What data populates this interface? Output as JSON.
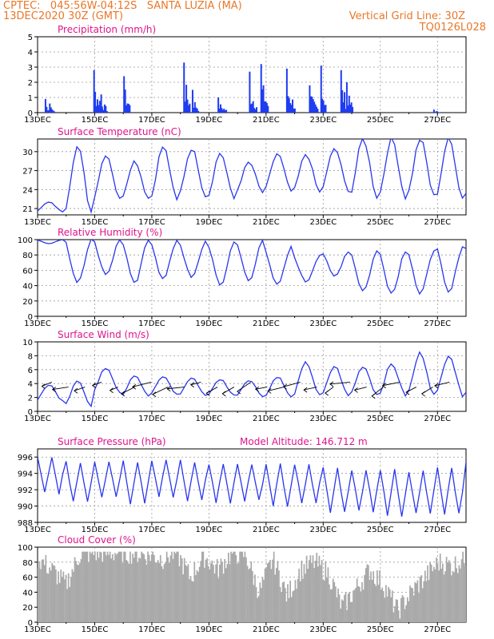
{
  "header": {
    "left_line1": "CPTEC:   045:56W-04:12S   SANTA LUZIA (MA)",
    "left_line2": "13DEC2020 30Z (GMT)",
    "right_line1": "Vertical Grid Line: 30Z",
    "right_line2": "TQ0126L028"
  },
  "colors": {
    "header": "#e8782a",
    "title": "#e0148c",
    "series": "#2a36ee",
    "bars": "#1f3cf0",
    "cloud": "#a9a9a9"
  },
  "chart_data": [
    {
      "type": "bar",
      "title": "Precipitation (mm/h)",
      "xlabel": "",
      "ylabel": "",
      "ylim": [
        0,
        5
      ],
      "yticks": [
        0,
        1,
        2,
        3,
        4,
        5
      ],
      "grid": true,
      "x_ticks": [
        "13DEC",
        "15DEC",
        "17DEC",
        "19DEC",
        "21DEC",
        "23DEC",
        "25DEC",
        "27DEC"
      ],
      "peaks": [
        {
          "day": 0.25,
          "value": 0.9
        },
        {
          "day": 0.4,
          "value": 0.6
        },
        {
          "day": 1.95,
          "value": 2.8
        },
        {
          "day": 2.2,
          "value": 1.2
        },
        {
          "day": 3.0,
          "value": 2.4
        },
        {
          "day": 5.1,
          "value": 3.3
        },
        {
          "day": 5.4,
          "value": 1.5
        },
        {
          "day": 6.3,
          "value": 1.0
        },
        {
          "day": 7.4,
          "value": 2.7
        },
        {
          "day": 7.8,
          "value": 3.2
        },
        {
          "day": 8.7,
          "value": 2.9
        },
        {
          "day": 9.5,
          "value": 1.8
        },
        {
          "day": 9.9,
          "value": 3.1
        },
        {
          "day": 10.6,
          "value": 2.8
        },
        {
          "day": 10.8,
          "value": 2.0
        },
        {
          "day": 13.85,
          "value": 0.2
        }
      ]
    },
    {
      "type": "line",
      "title": "Surface Temperature (nC)",
      "ylim": [
        20,
        32
      ],
      "yticks": [
        21,
        24,
        27,
        30
      ],
      "grid": true,
      "x_ticks": [
        "13DEC",
        "15DEC",
        "17DEC",
        "19DEC",
        "21DEC",
        "23DEC",
        "25DEC",
        "27DEC"
      ],
      "daily_max": [
        22,
        30.8,
        29.6,
        28.5,
        30.8,
        30.5,
        29.8,
        28.3,
        29.7,
        29.6,
        30.5,
        32,
        32,
        32,
        32,
        32
      ],
      "daily_min": [
        20.5,
        20.4,
        22.4,
        22.6,
        22.2,
        23,
        22.5,
        23.5,
        23.7,
        23.5,
        23.9,
        22.8,
        22.7,
        22.9,
        22.6,
        22.7
      ]
    },
    {
      "type": "line",
      "title": "Relative Humidity (%)",
      "ylim": [
        0,
        100
      ],
      "yticks": [
        0,
        20,
        40,
        60,
        80,
        100
      ],
      "grid": true,
      "x_ticks": [
        "13DEC",
        "15DEC",
        "17DEC",
        "19DEC",
        "21DEC",
        "23DEC",
        "25DEC",
        "27DEC"
      ],
      "daily_max": [
        100,
        100,
        100,
        100,
        100,
        98,
        97,
        100,
        90,
        80,
        85,
        85,
        86,
        88,
        92,
        94
      ],
      "daily_min": [
        95,
        45,
        55,
        42,
        48,
        50,
        40,
        45,
        40,
        45,
        52,
        33,
        30,
        28,
        30,
        30
      ]
    },
    {
      "type": "line",
      "title": "Surface Wind (m/s)",
      "ylim": [
        0,
        10
      ],
      "yticks": [
        0,
        2,
        4,
        6,
        8,
        10
      ],
      "grid": true,
      "x_ticks": [
        "13DEC",
        "15DEC",
        "17DEC",
        "19DEC",
        "21DEC",
        "23DEC",
        "25DEC",
        "27DEC"
      ],
      "daily_max": [
        3.8,
        4.5,
        6.3,
        5.2,
        5.0,
        4.8,
        4.6,
        4.5,
        5.0,
        7.0,
        6.5,
        6.5,
        6.8,
        8.4,
        8.2,
        8.4
      ],
      "daily_min": [
        1.5,
        0.7,
        2.8,
        2.2,
        2.4,
        2.3,
        2.3,
        2.2,
        2.0,
        2.2,
        2.2,
        2.4,
        2.3,
        2.3,
        2.3,
        2.4
      ]
    },
    {
      "type": "line",
      "title": "Surface Pressure (hPa)",
      "ylim": [
        988,
        997
      ],
      "yticks": [
        988,
        990,
        992,
        994,
        996
      ],
      "grid": true,
      "annotation": "Model Altitude: 146.712 m",
      "x_ticks": [
        "13DEC",
        "15DEC",
        "17DEC",
        "19DEC",
        "21DEC",
        "23DEC",
        "25DEC",
        "27DEC"
      ],
      "daily_max": [
        995.9,
        995.3,
        995.5,
        995.5,
        995.7,
        995.5,
        995.2,
        995.0,
        995.3,
        995.0,
        994.6,
        994.5,
        994.4,
        994.3,
        994.8,
        995.2
      ],
      "daily_min": [
        991.6,
        990.6,
        991.2,
        990.4,
        991.0,
        990.7,
        990.3,
        990.6,
        989.8,
        990.5,
        989.2,
        989.4,
        988.8,
        989.2,
        988.9,
        988.6
      ]
    },
    {
      "type": "area",
      "title": "Cloud Cover (%)",
      "ylim": [
        0,
        100
      ],
      "yticks": [
        0,
        20,
        40,
        60,
        80,
        100
      ],
      "grid": true,
      "x_ticks": [
        "13DEC",
        "15DEC",
        "17DEC",
        "19DEC",
        "21DEC",
        "23DEC",
        "25DEC",
        "27DEC"
      ],
      "profile": [
        85,
        70,
        50,
        90,
        92,
        92,
        93,
        92,
        90,
        85,
        93,
        60,
        88,
        70,
        92,
        90,
        40,
        85,
        35,
        70,
        80,
        65,
        20,
        45,
        70,
        50,
        15,
        40,
        60,
        80,
        75,
        88
      ]
    }
  ]
}
